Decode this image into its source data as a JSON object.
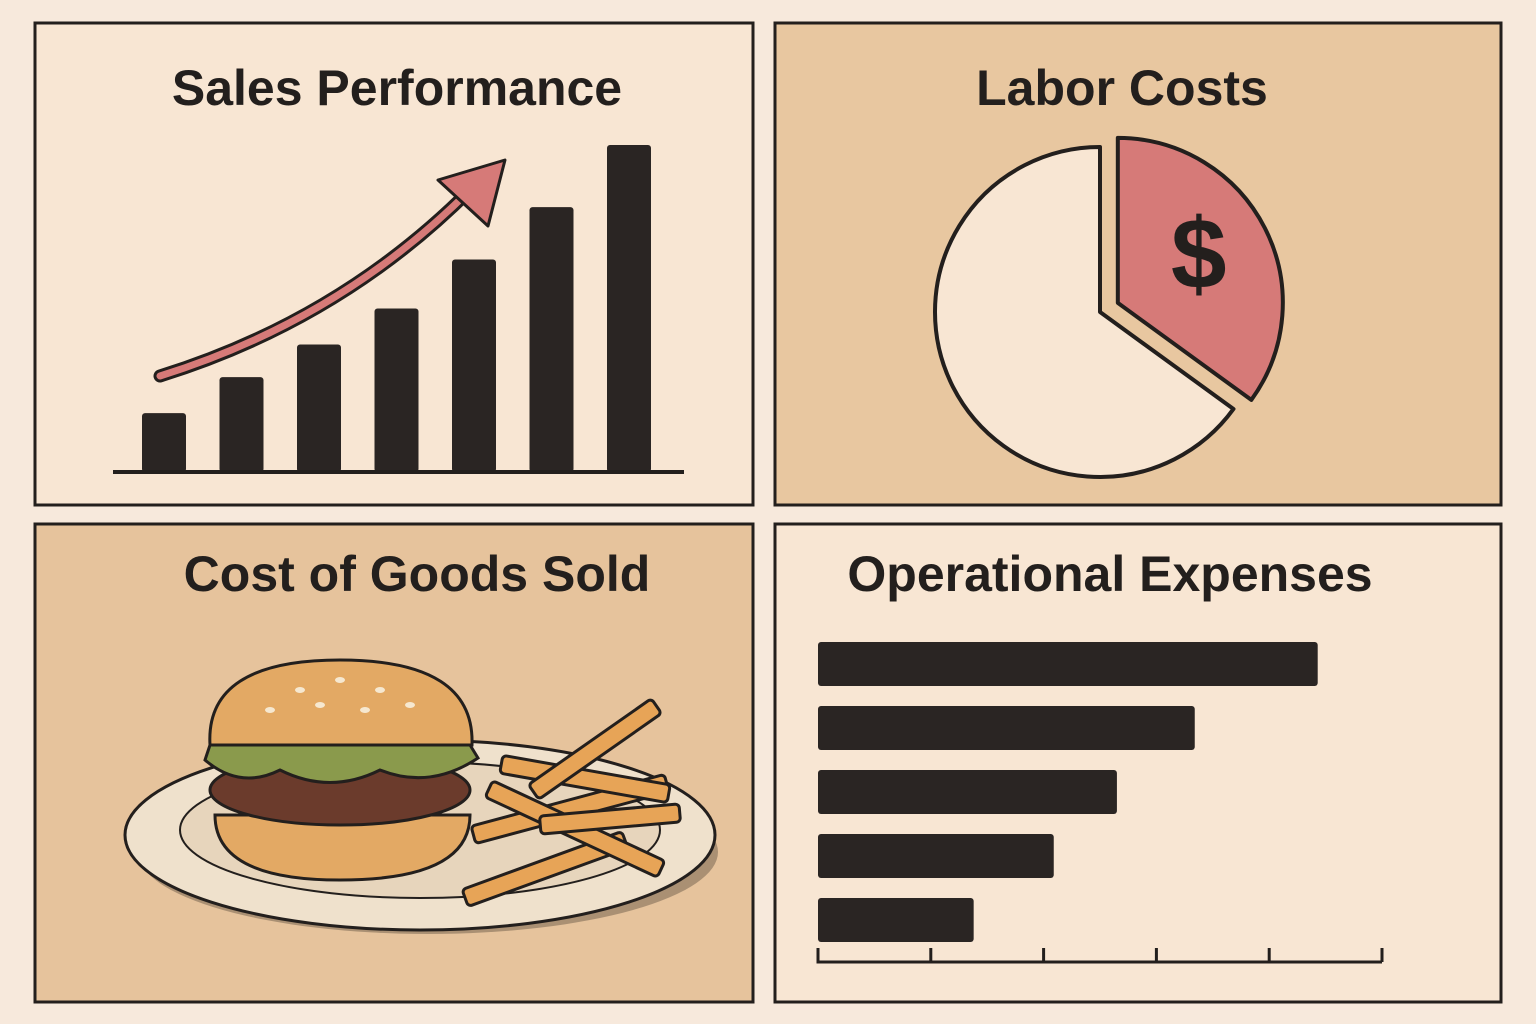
{
  "chart_data": [
    {
      "type": "bar",
      "title": "Sales Performance",
      "values": [
        18,
        29,
        39,
        50,
        65,
        81,
        100
      ],
      "color": "#2a2523",
      "panel_color": "#f8e6d3"
    },
    {
      "type": "pie",
      "title": "Labor Costs",
      "values": [
        65,
        35
      ],
      "colors": [
        "#f8e6d3",
        "#d67a78"
      ],
      "annotation": "$",
      "panel_color": "#e8c7a0"
    },
    {
      "type": "illustration",
      "title": "Cost of Goods Sold",
      "panel_color": "#e6c39c"
    },
    {
      "type": "hbar",
      "title": "Operational Expenses",
      "values": [
        4.43,
        3.34,
        2.65,
        2.09,
        1.38
      ],
      "color": "#2a2523",
      "xlim": [
        0,
        5
      ],
      "xticks": [
        1,
        2,
        3,
        4,
        5
      ],
      "panel_color": "#f8e6d3"
    }
  ]
}
